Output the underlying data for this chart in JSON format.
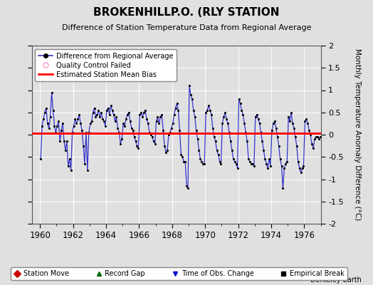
{
  "title": "BROKENHILLP.O. (RLY STATION",
  "subtitle": "Difference of Station Temperature Data from Regional Average",
  "ylabel": "Monthly Temperature Anomaly Difference (°C)",
  "xlabel_years": [
    1960,
    1962,
    1964,
    1966,
    1968,
    1970,
    1972,
    1974,
    1976
  ],
  "ylim": [
    -2,
    2
  ],
  "xlim": [
    1959.5,
    1977.0
  ],
  "bias_value": 0.04,
  "background_color": "#e0e0e0",
  "plot_bg_color": "#e0e0e0",
  "line_color": "#3333cc",
  "bias_color": "#ff0000",
  "marker_color": "#000000",
  "watermark": "Berkeley Earth",
  "data_x": [
    1960.042,
    1960.125,
    1960.208,
    1960.292,
    1960.375,
    1960.458,
    1960.542,
    1960.625,
    1960.708,
    1960.792,
    1960.875,
    1960.958,
    1961.042,
    1961.125,
    1961.208,
    1961.292,
    1961.375,
    1961.458,
    1961.542,
    1961.625,
    1961.708,
    1961.792,
    1961.875,
    1961.958,
    1962.042,
    1962.125,
    1962.208,
    1962.292,
    1962.375,
    1962.458,
    1962.542,
    1962.625,
    1962.708,
    1962.792,
    1962.875,
    1962.958,
    1963.042,
    1963.125,
    1963.208,
    1963.292,
    1963.375,
    1963.458,
    1963.542,
    1963.625,
    1963.708,
    1963.792,
    1963.875,
    1963.958,
    1964.042,
    1964.125,
    1964.208,
    1964.292,
    1964.375,
    1964.458,
    1964.542,
    1964.625,
    1964.708,
    1964.792,
    1964.875,
    1964.958,
    1965.042,
    1965.125,
    1965.208,
    1965.292,
    1965.375,
    1965.458,
    1965.542,
    1965.625,
    1965.708,
    1965.792,
    1965.875,
    1965.958,
    1966.042,
    1966.125,
    1966.208,
    1966.292,
    1966.375,
    1966.458,
    1966.542,
    1966.625,
    1966.708,
    1966.792,
    1966.875,
    1966.958,
    1967.042,
    1967.125,
    1967.208,
    1967.292,
    1967.375,
    1967.458,
    1967.542,
    1967.625,
    1967.708,
    1967.792,
    1967.875,
    1967.958,
    1968.042,
    1968.125,
    1968.208,
    1968.292,
    1968.375,
    1968.458,
    1968.542,
    1968.625,
    1968.708,
    1968.792,
    1968.875,
    1968.958,
    1969.042,
    1969.125,
    1969.208,
    1969.292,
    1969.375,
    1969.458,
    1969.542,
    1969.625,
    1969.708,
    1969.792,
    1969.875,
    1969.958,
    1970.042,
    1970.125,
    1970.208,
    1970.292,
    1970.375,
    1970.458,
    1970.542,
    1970.625,
    1970.708,
    1970.792,
    1970.875,
    1970.958,
    1971.042,
    1971.125,
    1971.208,
    1971.292,
    1971.375,
    1971.458,
    1971.542,
    1971.625,
    1971.708,
    1971.792,
    1971.875,
    1971.958,
    1972.042,
    1972.125,
    1972.208,
    1972.292,
    1972.375,
    1972.458,
    1972.542,
    1972.625,
    1972.708,
    1972.792,
    1972.875,
    1972.958,
    1973.042,
    1973.125,
    1973.208,
    1973.292,
    1973.375,
    1973.458,
    1973.542,
    1973.625,
    1973.708,
    1973.792,
    1973.875,
    1973.958,
    1974.042,
    1974.125,
    1974.208,
    1974.292,
    1974.375,
    1974.458,
    1974.542,
    1974.625,
    1974.708,
    1974.792,
    1974.875,
    1974.958,
    1975.042,
    1975.125,
    1975.208,
    1975.292,
    1975.375,
    1975.458,
    1975.542,
    1975.625,
    1975.708,
    1975.792,
    1975.875,
    1975.958,
    1976.042,
    1976.125,
    1976.208,
    1976.292,
    1976.375,
    1976.458,
    1976.542,
    1976.625,
    1976.708,
    1976.792,
    1976.875,
    1976.958
  ],
  "data_y": [
    -0.55,
    0.2,
    0.35,
    0.5,
    0.6,
    0.25,
    0.15,
    0.4,
    0.95,
    0.55,
    0.2,
    0.05,
    0.2,
    0.3,
    -0.15,
    0.1,
    0.25,
    -0.15,
    -0.35,
    -0.15,
    -0.7,
    -0.55,
    -0.8,
    0.05,
    0.2,
    0.35,
    0.25,
    0.35,
    0.45,
    0.25,
    0.1,
    -0.25,
    -0.65,
    0.05,
    -0.8,
    0.05,
    0.25,
    0.3,
    0.5,
    0.6,
    0.4,
    0.45,
    0.55,
    0.4,
    0.5,
    0.35,
    0.3,
    0.2,
    0.55,
    0.6,
    0.45,
    0.65,
    0.55,
    0.45,
    0.3,
    0.4,
    0.15,
    0.05,
    -0.2,
    -0.1,
    0.25,
    0.2,
    0.35,
    0.45,
    0.5,
    0.3,
    0.15,
    0.1,
    -0.05,
    -0.15,
    -0.25,
    -0.3,
    0.45,
    0.5,
    0.4,
    0.5,
    0.55,
    0.35,
    0.25,
    0.05,
    0.0,
    -0.05,
    -0.15,
    -0.2,
    0.3,
    0.4,
    0.25,
    0.4,
    0.45,
    0.1,
    -0.25,
    -0.4,
    -0.35,
    0.0,
    0.05,
    0.15,
    0.25,
    0.45,
    0.6,
    0.7,
    0.55,
    0.1,
    -0.45,
    -0.5,
    -0.6,
    -0.6,
    -1.15,
    -1.2,
    1.1,
    0.9,
    0.8,
    0.55,
    0.4,
    0.1,
    -0.1,
    -0.35,
    -0.55,
    -0.6,
    -0.65,
    -0.65,
    0.5,
    0.55,
    0.65,
    0.55,
    0.45,
    0.15,
    -0.05,
    -0.15,
    -0.35,
    -0.45,
    -0.6,
    -0.65,
    0.25,
    0.4,
    0.5,
    0.35,
    0.25,
    0.05,
    -0.15,
    -0.35,
    -0.55,
    -0.6,
    -0.65,
    -0.75,
    0.8,
    0.7,
    0.55,
    0.45,
    0.25,
    0.05,
    -0.15,
    -0.55,
    -0.6,
    -0.65,
    -0.65,
    -0.7,
    0.4,
    0.45,
    0.35,
    0.25,
    0.05,
    -0.15,
    -0.35,
    -0.55,
    -0.65,
    -0.75,
    -0.55,
    -0.7,
    0.1,
    0.25,
    0.3,
    0.15,
    -0.05,
    -0.25,
    -0.55,
    -0.7,
    -1.2,
    -0.75,
    -0.65,
    -0.6,
    0.4,
    0.3,
    0.5,
    0.25,
    0.15,
    -0.05,
    -0.25,
    -0.6,
    -0.75,
    -0.85,
    -0.75,
    -0.7,
    0.3,
    0.35,
    0.25,
    0.1,
    0.0,
    -0.2,
    -0.3,
    -0.1,
    -0.05,
    -0.05,
    -0.1,
    -0.05
  ]
}
